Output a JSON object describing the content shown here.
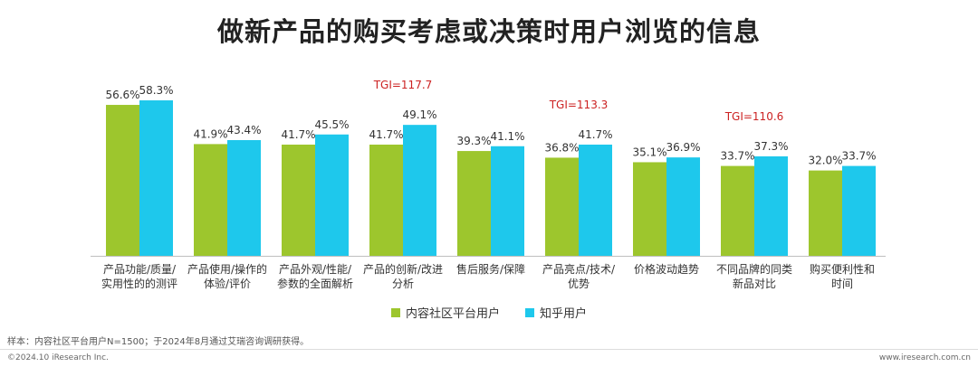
{
  "chart_data": {
    "type": "bar",
    "title": "做新产品的购买考虑或决策时用户浏览的信息",
    "categories": [
      [
        "产品功能/质量/",
        "实用性的的测评"
      ],
      [
        "产品使用/操作的",
        "体验/评价"
      ],
      [
        "产品外观/性能/",
        "参数的全面解析"
      ],
      [
        "产品的创新/改进",
        "分析"
      ],
      [
        "售后服务/保障"
      ],
      [
        "产品亮点/技术/",
        "优势"
      ],
      [
        "价格波动趋势"
      ],
      [
        "不同品牌的同类",
        "新品对比"
      ],
      [
        "购买便利性和",
        "时间"
      ]
    ],
    "series": [
      {
        "name": "内容社区平台用户",
        "color": "#9dc62d",
        "values": [
          56.6,
          41.9,
          41.7,
          41.7,
          39.3,
          36.8,
          35.1,
          33.7,
          32.0
        ],
        "labels": [
          "56.6%",
          "41.9%",
          "41.7%",
          "41.7%",
          "39.3%",
          "36.8%",
          "35.1%",
          "33.7%",
          "32.0%"
        ]
      },
      {
        "name": "知乎用户",
        "color": "#1ec8ec",
        "values": [
          58.3,
          43.4,
          45.5,
          49.1,
          41.1,
          41.7,
          36.9,
          37.3,
          33.7
        ],
        "labels": [
          "58.3%",
          "43.4%",
          "45.5%",
          "49.1%",
          "41.1%",
          "41.7%",
          "36.9%",
          "37.3%",
          "33.7%"
        ]
      }
    ],
    "annotations": [
      {
        "category_index": 3,
        "text": "TGI=117.7",
        "color": "#cc2222"
      },
      {
        "category_index": 5,
        "text": "TGI=113.3",
        "color": "#cc2222"
      },
      {
        "category_index": 7,
        "text": "TGI=110.6",
        "color": "#cc2222"
      }
    ],
    "ylim": [
      0,
      60
    ],
    "grid": false,
    "legend_position": "bottom"
  },
  "note": "样本：内容社区平台用户N=1500；于2024年8月通过艾瑞咨询调研获得。",
  "footer": {
    "left": "©2024.10 iResearch Inc.",
    "right": "www.iresearch.com.cn"
  }
}
